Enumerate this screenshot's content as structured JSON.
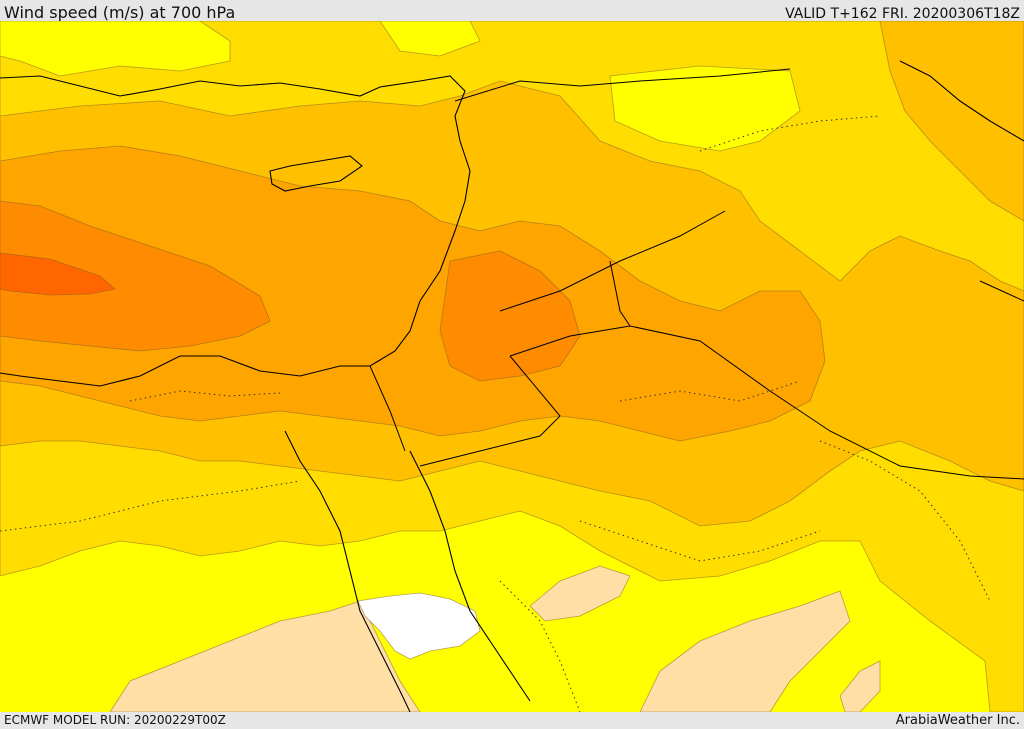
{
  "header": {
    "title": "Wind speed (m/s) at 700 hPa",
    "valid": "VALID T+162 FRI. 20200306T18Z"
  },
  "footer": {
    "model_run": "ECMWF MODEL RUN: 20200229T00Z",
    "credit": "ArabiaWeather Inc."
  },
  "map": {
    "variable": "Wind speed",
    "units": "m/s",
    "level": "700 hPa",
    "region": "Eastern Mediterranean and Middle East",
    "colors": {
      "very_low": "#ffffff",
      "low": "#ffdfa6",
      "light": "#ffff00",
      "moderate": "#ffdd00",
      "elevated": "#ffc000",
      "high": "#ffa500",
      "higher": "#ff8c00",
      "max": "#ff6600"
    }
  }
}
